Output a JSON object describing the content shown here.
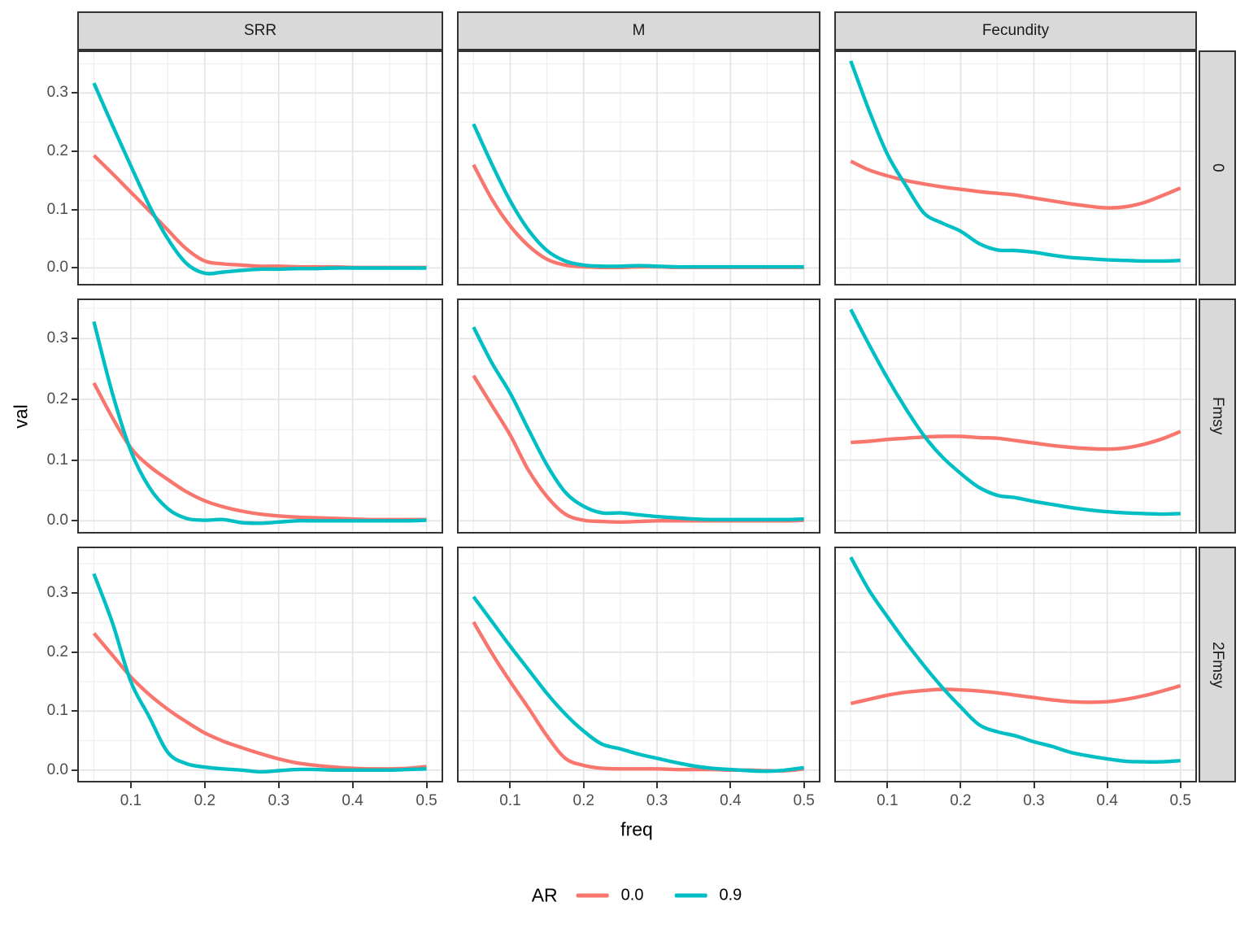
{
  "legend": {
    "title": "AR",
    "entries": [
      {
        "label": "0.0",
        "color": "#F8766D"
      },
      {
        "label": "0.9",
        "color": "#00BFC4"
      }
    ]
  },
  "chart_data": {
    "type": "line",
    "title": "",
    "xlabel": "freq",
    "ylabel": "val",
    "facet_columns": [
      "SRR",
      "M",
      "Fecundity"
    ],
    "facet_rows": [
      "0",
      "Fmsy",
      "2Fmsy"
    ],
    "legend_position": "bottom",
    "grid": "on",
    "x": [
      0.05,
      0.075,
      0.1,
      0.125,
      0.15,
      0.175,
      0.2,
      0.225,
      0.25,
      0.275,
      0.3,
      0.325,
      0.35,
      0.375,
      0.4,
      0.425,
      0.45,
      0.475,
      0.5
    ],
    "xlim": [
      0.0275,
      0.5225
    ],
    "x_ticks": [
      {
        "v": 0.1,
        "label": "0.1"
      },
      {
        "v": 0.2,
        "label": "0.2"
      },
      {
        "v": 0.3,
        "label": "0.3"
      },
      {
        "v": 0.4,
        "label": "0.4"
      },
      {
        "v": 0.5,
        "label": "0.5"
      }
    ],
    "y_ticks": [
      {
        "v": 0.0,
        "label": "0.0"
      },
      {
        "v": 0.1,
        "label": "0.1"
      },
      {
        "v": 0.2,
        "label": "0.2"
      },
      {
        "v": 0.3,
        "label": "0.3"
      }
    ],
    "x_minor": [
      0.05,
      0.15,
      0.25,
      0.35,
      0.45
    ],
    "y_minor": [
      0.05,
      0.15,
      0.25,
      0.35
    ],
    "row_ylims": [
      [
        -0.03,
        0.373
      ],
      [
        -0.021,
        0.366
      ],
      [
        -0.021,
        0.379
      ]
    ],
    "series_colors": {
      "0.0": "#F8766D",
      "0.9": "#00BFC4"
    },
    "panels": [
      {
        "col": "SRR",
        "row": "0",
        "series": [
          {
            "name": "0.0",
            "values": [
              0.193,
              0.162,
              0.13,
              0.098,
              0.065,
              0.033,
              0.012,
              0.007,
              0.005,
              0.003,
              0.003,
              0.002,
              0.002,
              0.002,
              0.001,
              0.001,
              0.001,
              0.001,
              0.001
            ]
          },
          {
            "name": "0.9",
            "values": [
              0.317,
              0.245,
              0.175,
              0.107,
              0.05,
              0.008,
              -0.009,
              -0.007,
              -0.004,
              -0.002,
              -0.002,
              -0.001,
              -0.001,
              0.0,
              0.0,
              0.0,
              0.0,
              0.0,
              0.0
            ]
          }
        ]
      },
      {
        "col": "M",
        "row": "0",
        "series": [
          {
            "name": "0.0",
            "values": [
              0.177,
              0.118,
              0.072,
              0.038,
              0.015,
              0.005,
              0.002,
              0.001,
              0.001,
              0.002,
              0.002,
              0.001,
              0.001,
              0.001,
              0.001,
              0.001,
              0.001,
              0.001,
              0.001
            ]
          },
          {
            "name": "0.9",
            "values": [
              0.247,
              0.178,
              0.115,
              0.065,
              0.03,
              0.012,
              0.005,
              0.003,
              0.003,
              0.004,
              0.003,
              0.002,
              0.002,
              0.002,
              0.002,
              0.002,
              0.002,
              0.002,
              0.002
            ]
          }
        ]
      },
      {
        "col": "Fecundity",
        "row": "0",
        "series": [
          {
            "name": "0.0",
            "values": [
              0.183,
              0.168,
              0.158,
              0.15,
              0.144,
              0.139,
              0.135,
              0.131,
              0.128,
              0.125,
              0.12,
              0.115,
              0.11,
              0.106,
              0.103,
              0.105,
              0.112,
              0.124,
              0.137
            ]
          },
          {
            "name": "0.9",
            "values": [
              0.355,
              0.27,
              0.195,
              0.142,
              0.094,
              0.077,
              0.063,
              0.042,
              0.031,
              0.03,
              0.027,
              0.022,
              0.018,
              0.016,
              0.014,
              0.013,
              0.012,
              0.012,
              0.013
            ]
          }
        ]
      },
      {
        "col": "SRR",
        "row": "Fmsy",
        "series": [
          {
            "name": "0.0",
            "values": [
              0.227,
              0.17,
              0.12,
              0.09,
              0.068,
              0.048,
              0.033,
              0.023,
              0.016,
              0.011,
              0.008,
              0.006,
              0.005,
              0.004,
              0.003,
              0.002,
              0.002,
              0.002,
              0.002
            ]
          },
          {
            "name": "0.9",
            "values": [
              0.328,
              0.21,
              0.115,
              0.055,
              0.02,
              0.004,
              0.001,
              0.002,
              -0.003,
              -0.004,
              -0.002,
              0.0,
              0.0,
              0.0,
              0.0,
              0.0,
              0.0,
              0.0,
              0.001
            ]
          }
        ]
      },
      {
        "col": "M",
        "row": "Fmsy",
        "series": [
          {
            "name": "0.0",
            "values": [
              0.239,
              0.19,
              0.141,
              0.083,
              0.04,
              0.011,
              0.001,
              -0.001,
              -0.002,
              -0.001,
              0.0,
              0.0,
              0.0,
              0.0,
              0.0,
              0.0,
              0.0,
              0.0,
              0.001
            ]
          },
          {
            "name": "0.9",
            "values": [
              0.319,
              0.26,
              0.21,
              0.15,
              0.092,
              0.047,
              0.024,
              0.013,
              0.013,
              0.01,
              0.007,
              0.005,
              0.003,
              0.002,
              0.002,
              0.002,
              0.002,
              0.002,
              0.003
            ]
          }
        ]
      },
      {
        "col": "Fecundity",
        "row": "Fmsy",
        "series": [
          {
            "name": "0.0",
            "values": [
              0.129,
              0.131,
              0.134,
              0.136,
              0.138,
              0.139,
              0.139,
              0.137,
              0.136,
              0.132,
              0.128,
              0.124,
              0.121,
              0.119,
              0.118,
              0.12,
              0.126,
              0.135,
              0.147
            ]
          },
          {
            "name": "0.9",
            "values": [
              0.348,
              0.29,
              0.235,
              0.185,
              0.14,
              0.105,
              0.078,
              0.055,
              0.042,
              0.038,
              0.032,
              0.027,
              0.022,
              0.018,
              0.015,
              0.013,
              0.012,
              0.011,
              0.012
            ]
          }
        ]
      },
      {
        "col": "SRR",
        "row": "2Fmsy",
        "series": [
          {
            "name": "0.0",
            "values": [
              0.232,
              0.195,
              0.158,
              0.128,
              0.103,
              0.082,
              0.063,
              0.049,
              0.038,
              0.028,
              0.019,
              0.012,
              0.008,
              0.005,
              0.003,
              0.002,
              0.002,
              0.003,
              0.006
            ]
          },
          {
            "name": "0.9",
            "values": [
              0.333,
              0.25,
              0.15,
              0.09,
              0.03,
              0.011,
              0.005,
              0.002,
              0.0,
              -0.003,
              -0.001,
              0.001,
              0.001,
              0.0,
              0.0,
              0.0,
              0.0,
              0.001,
              0.002
            ]
          }
        ]
      },
      {
        "col": "M",
        "row": "2Fmsy",
        "series": [
          {
            "name": "0.0",
            "values": [
              0.251,
              0.198,
              0.15,
              0.105,
              0.058,
              0.02,
              0.008,
              0.003,
              0.002,
              0.002,
              0.002,
              0.001,
              0.001,
              0.001,
              0.0,
              0.0,
              -0.001,
              -0.001,
              0.002
            ]
          },
          {
            "name": "0.9",
            "values": [
              0.294,
              0.252,
              0.21,
              0.17,
              0.13,
              0.095,
              0.066,
              0.044,
              0.036,
              0.027,
              0.02,
              0.013,
              0.007,
              0.003,
              0.001,
              -0.001,
              -0.002,
              0.0,
              0.004
            ]
          }
        ]
      },
      {
        "col": "Fecundity",
        "row": "2Fmsy",
        "series": [
          {
            "name": "0.0",
            "values": [
              0.113,
              0.12,
              0.127,
              0.132,
              0.135,
              0.137,
              0.136,
              0.134,
              0.131,
              0.127,
              0.123,
              0.119,
              0.116,
              0.115,
              0.116,
              0.12,
              0.126,
              0.134,
              0.143
            ]
          },
          {
            "name": "0.9",
            "values": [
              0.361,
              0.305,
              0.26,
              0.217,
              0.177,
              0.14,
              0.107,
              0.077,
              0.065,
              0.058,
              0.048,
              0.04,
              0.03,
              0.024,
              0.019,
              0.015,
              0.014,
              0.014,
              0.016
            ]
          }
        ]
      }
    ]
  },
  "style": {
    "grid_major_color": "#e3e3e3",
    "grid_minor_color": "#efefef",
    "strip_fill": "#d9d9d9",
    "border_color": "#333333",
    "tick_text_color": "#4d4d4d"
  }
}
